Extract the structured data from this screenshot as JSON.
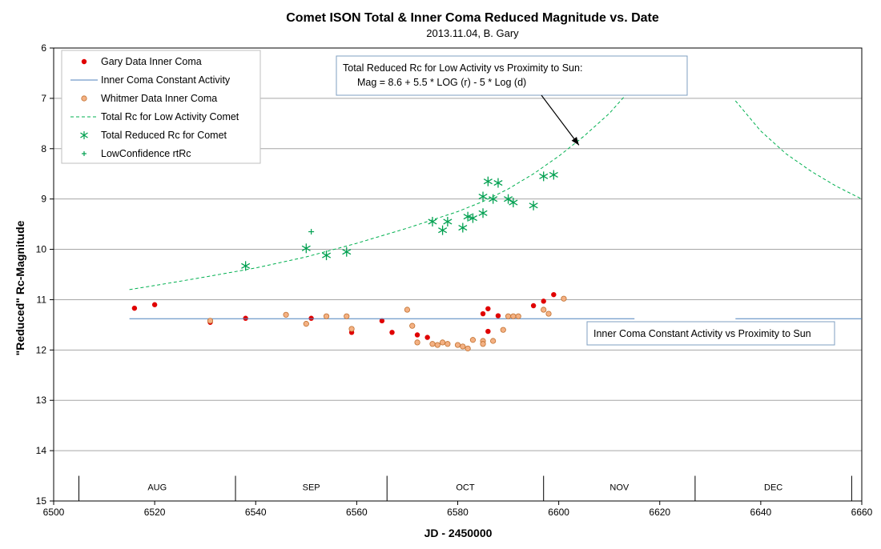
{
  "chart_data": {
    "type": "scatter",
    "title": "Comet ISON Total & Inner Coma Reduced Magnitude vs. Date",
    "subtitle": "2013.11.04,  B. Gary",
    "xlabel": "JD - 2450000",
    "ylabel": "\"Reduced\" Rc-Magnitude",
    "xlim": [
      6500,
      6660
    ],
    "ylim": [
      6,
      15
    ],
    "y_inverted": true,
    "x_ticks": [
      6500,
      6520,
      6540,
      6560,
      6580,
      6600,
      6620,
      6640,
      6660
    ],
    "y_ticks": [
      6,
      7,
      8,
      9,
      10,
      11,
      12,
      13,
      14,
      15
    ],
    "grid": "horizontal",
    "legend_position": "top-left",
    "months": [
      {
        "label": "AUG",
        "start": 6505,
        "end": 6536
      },
      {
        "label": "SEP",
        "start": 6536,
        "end": 6566
      },
      {
        "label": "OCT",
        "start": 6566,
        "end": 6597
      },
      {
        "label": "NOV",
        "start": 6597,
        "end": 6627
      },
      {
        "label": "DEC",
        "start": 6627,
        "end": 6658
      }
    ],
    "month_band": {
      "y_top": 14.5,
      "y_bottom": 15
    },
    "series": [
      {
        "name": "Gary Data Inner Coma",
        "kind": "points",
        "marker": "dot",
        "color": "#e00000",
        "x": [
          6516,
          6520,
          6531,
          6538,
          6551,
          6559,
          6565,
          6567,
          6572,
          6574,
          6585,
          6586,
          6586,
          6588,
          6595,
          6597,
          6599
        ],
        "y": [
          11.17,
          11.1,
          11.45,
          11.37,
          11.37,
          11.65,
          11.42,
          11.65,
          11.7,
          11.75,
          11.28,
          11.18,
          11.63,
          11.32,
          11.12,
          11.03,
          10.9
        ]
      },
      {
        "name": "Inner Coma Constant Activity",
        "kind": "line",
        "color": "#4f81bd",
        "x": [
          6515,
          6615
        ],
        "y": [
          11.38,
          11.38
        ]
      },
      {
        "name": "Whitmer Data Inner Coma",
        "kind": "points",
        "marker": "circle",
        "color": "#f4b183",
        "stroke": "#c07030",
        "x": [
          6531,
          6546,
          6550,
          6554,
          6558,
          6559,
          6570,
          6571,
          6572,
          6575,
          6576,
          6577,
          6578,
          6580,
          6581,
          6582,
          6583,
          6585,
          6585,
          6587,
          6589,
          6590,
          6591,
          6592,
          6597,
          6598,
          6601
        ],
        "y": [
          11.42,
          11.3,
          11.48,
          11.33,
          11.33,
          11.58,
          11.2,
          11.52,
          11.85,
          11.88,
          11.9,
          11.85,
          11.88,
          11.9,
          11.93,
          11.97,
          11.8,
          11.82,
          11.88,
          11.82,
          11.6,
          11.33,
          11.33,
          11.33,
          11.2,
          11.28,
          10.98
        ]
      },
      {
        "name": "Total Rc for Low Activity Comet",
        "kind": "curve",
        "style": "dashed",
        "color": "#00b050",
        "x": [
          6515,
          6520,
          6530,
          6540,
          6550,
          6560,
          6570,
          6580,
          6585,
          6590,
          6595,
          6600,
          6605,
          6610,
          6614,
          6615
        ],
        "y": [
          10.8,
          10.72,
          10.55,
          10.37,
          10.15,
          9.88,
          9.58,
          9.25,
          9.05,
          8.8,
          8.5,
          8.15,
          7.75,
          7.3,
          6.85,
          6.72
        ]
      },
      {
        "name": "Total Rc for Low Activity Comet (after perihelion)",
        "kind": "curve",
        "style": "dashed",
        "color": "#00b050",
        "show_in_legend": false,
        "x": [
          6635,
          6640,
          6645,
          6650,
          6655,
          6660
        ],
        "y": [
          7.05,
          7.65,
          8.1,
          8.45,
          8.75,
          9.0
        ]
      },
      {
        "name": "Total Reduced Rc for Comet",
        "kind": "points",
        "marker": "asterisk",
        "color": "#00a050",
        "x": [
          6538,
          6550,
          6554,
          6558,
          6575,
          6577,
          6578,
          6581,
          6582,
          6583,
          6585,
          6585,
          6586,
          6587,
          6588,
          6590,
          6591,
          6595,
          6597,
          6599
        ],
        "y": [
          10.33,
          9.98,
          10.12,
          10.05,
          9.45,
          9.62,
          9.45,
          9.57,
          9.35,
          9.38,
          8.95,
          9.28,
          8.65,
          9.0,
          8.68,
          9.0,
          9.07,
          9.13,
          8.55,
          8.52
        ]
      },
      {
        "name": "LowConfidence rtRc",
        "kind": "points",
        "marker": "plus",
        "color": "#00a050",
        "x": [
          6551
        ],
        "y": [
          9.65
        ]
      },
      {
        "name": "Inner Coma Constant Activity vs Proximity to Sun (post)",
        "kind": "line",
        "color": "#4f81bd",
        "show_in_legend": false,
        "x": [
          6635,
          6660
        ],
        "y": [
          11.38,
          11.38
        ]
      }
    ],
    "annotations": [
      {
        "lines": [
          "Total Reduced Rc for Low Activity vs Proximity to Sun:",
          "Mag = 8.6 + 5.5 * LOG (r) - 5 * Log (d)"
        ],
        "arrow_to": {
          "x": 6604,
          "y": 7.93
        }
      },
      {
        "lines": [
          "Inner Coma Constant Activity vs Proximity to Sun"
        ]
      }
    ]
  }
}
